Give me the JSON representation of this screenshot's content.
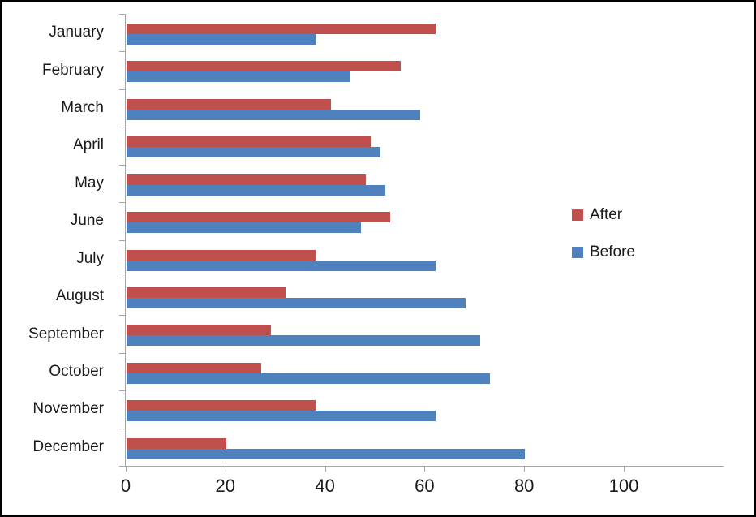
{
  "chart_data": {
    "type": "bar",
    "orientation": "horizontal",
    "title": "",
    "xlabel": "",
    "ylabel": "",
    "categories": [
      "January",
      "February",
      "March",
      "April",
      "May",
      "June",
      "July",
      "August",
      "September",
      "October",
      "November",
      "December"
    ],
    "series": [
      {
        "name": "After",
        "color": "#C0504D",
        "values": [
          62,
          55,
          41,
          49,
          48,
          53,
          38,
          32,
          29,
          27,
          38,
          20
        ]
      },
      {
        "name": "Before",
        "color": "#4F81BD",
        "values": [
          38,
          45,
          59,
          51,
          52,
          47,
          62,
          68,
          71,
          73,
          62,
          80
        ]
      }
    ],
    "xlim": [
      0,
      100
    ],
    "x_ticks": [
      0,
      20,
      40,
      60,
      80,
      100
    ],
    "x_tick_labels": [
      "0",
      "20",
      "40",
      "60",
      "80",
      "100"
    ],
    "grid": "off",
    "legend_position": "right",
    "legend_order": [
      "After",
      "Before"
    ],
    "axis_color": "#a6a6a6",
    "text_color": "#1a1a1a"
  }
}
